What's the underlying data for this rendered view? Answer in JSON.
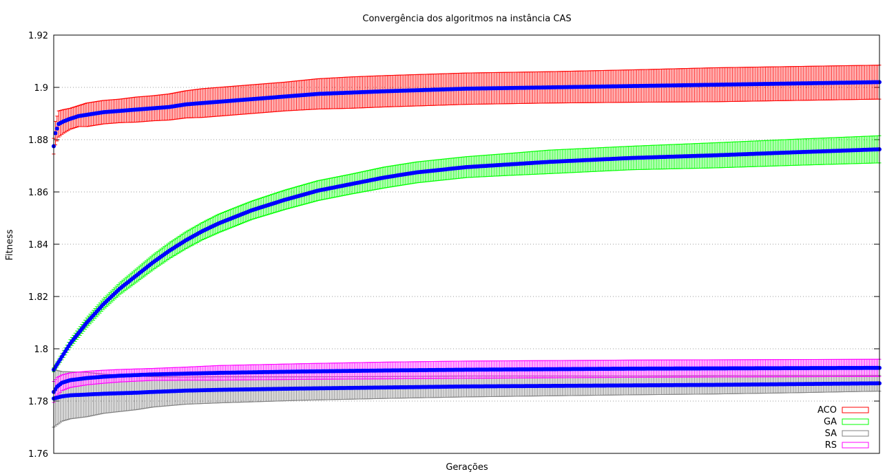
{
  "chart_data": {
    "type": "line",
    "title": "Convergência dos algoritmos na instância CAS",
    "xlabel": "Gerações",
    "ylabel": "Fitness",
    "ylim": [
      1.76,
      1.92
    ],
    "xlim": [
      0,
      500
    ],
    "yticks": [
      "1.76",
      "1.78",
      "1.8",
      "1.82",
      "1.84",
      "1.86",
      "1.88",
      "1.9",
      "1.92"
    ],
    "grid": true,
    "legend_position": "bottom-right",
    "mean_marker_color": "#0000ff",
    "series": [
      {
        "name": "ACO",
        "color": "#ff0000",
        "x": [
          0,
          1,
          3,
          6,
          10,
          15,
          20,
          30,
          40,
          50,
          60,
          70,
          80,
          90,
          100,
          120,
          140,
          160,
          180,
          200,
          250,
          300,
          350,
          400,
          450,
          500
        ],
        "mean": [
          1.8775,
          1.8825,
          1.886,
          1.887,
          1.888,
          1.889,
          1.8895,
          1.8905,
          1.891,
          1.8915,
          1.892,
          1.8925,
          1.8935,
          1.894,
          1.8945,
          1.8955,
          1.8965,
          1.8975,
          1.898,
          1.8985,
          1.8995,
          1.9,
          1.9005,
          1.901,
          1.9015,
          1.902
        ],
        "err": [
          0.003,
          0.0045,
          0.005,
          0.0045,
          0.004,
          0.004,
          0.0045,
          0.0045,
          0.0045,
          0.0048,
          0.0048,
          0.005,
          0.0052,
          0.0055,
          0.0055,
          0.0055,
          0.0055,
          0.0058,
          0.006,
          0.006,
          0.006,
          0.006,
          0.0062,
          0.0065,
          0.0065,
          0.0065
        ]
      },
      {
        "name": "GA",
        "color": "#00ff00",
        "x": [
          0,
          5,
          10,
          20,
          30,
          40,
          50,
          60,
          70,
          80,
          90,
          100,
          120,
          140,
          160,
          180,
          200,
          220,
          250,
          275,
          300,
          350,
          400,
          450,
          500
        ],
        "mean": [
          1.792,
          1.797,
          1.802,
          1.81,
          1.817,
          1.823,
          1.828,
          1.833,
          1.8375,
          1.8415,
          1.845,
          1.848,
          1.853,
          1.857,
          1.8605,
          1.863,
          1.8655,
          1.8675,
          1.8695,
          1.8705,
          1.8715,
          1.873,
          1.874,
          1.8752,
          1.8763
        ],
        "err": [
          0.0008,
          0.0012,
          0.0015,
          0.0018,
          0.002,
          0.0022,
          0.0025,
          0.0028,
          0.003,
          0.0032,
          0.0033,
          0.0035,
          0.0035,
          0.0037,
          0.0038,
          0.0038,
          0.004,
          0.004,
          0.004,
          0.0042,
          0.0045,
          0.0045,
          0.0048,
          0.005,
          0.0052
        ]
      },
      {
        "name": "SA",
        "color": "#808080",
        "x": [
          0,
          5,
          10,
          20,
          30,
          40,
          50,
          60,
          80,
          100,
          150,
          200,
          250,
          300,
          350,
          400,
          450,
          500
        ],
        "mean": [
          1.781,
          1.7818,
          1.7822,
          1.7825,
          1.7828,
          1.783,
          1.7832,
          1.7835,
          1.784,
          1.7843,
          1.7848,
          1.7852,
          1.7856,
          1.7858,
          1.786,
          1.7862,
          1.7865,
          1.7868
        ],
        "err": [
          0.011,
          0.0095,
          0.009,
          0.0085,
          0.0075,
          0.007,
          0.0065,
          0.0058,
          0.0052,
          0.005,
          0.0045,
          0.0042,
          0.004,
          0.0038,
          0.0036,
          0.0035,
          0.0033,
          0.003
        ]
      },
      {
        "name": "RS",
        "color": "#ff00ff",
        "x": [
          0,
          2,
          5,
          10,
          20,
          30,
          40,
          60,
          80,
          100,
          150,
          200,
          250,
          300,
          350,
          400,
          450,
          500
        ],
        "mean": [
          1.7835,
          1.7855,
          1.787,
          1.788,
          1.7888,
          1.7893,
          1.7897,
          1.7902,
          1.7905,
          1.7908,
          1.7913,
          1.7917,
          1.792,
          1.7922,
          1.7924,
          1.7925,
          1.7926,
          1.7927
        ],
        "err": [
          0.004,
          0.0035,
          0.003,
          0.0028,
          0.0026,
          0.0025,
          0.0024,
          0.0023,
          0.0025,
          0.0028,
          0.003,
          0.0032,
          0.0033,
          0.0033,
          0.0033,
          0.0033,
          0.0033,
          0.0033
        ]
      }
    ]
  }
}
